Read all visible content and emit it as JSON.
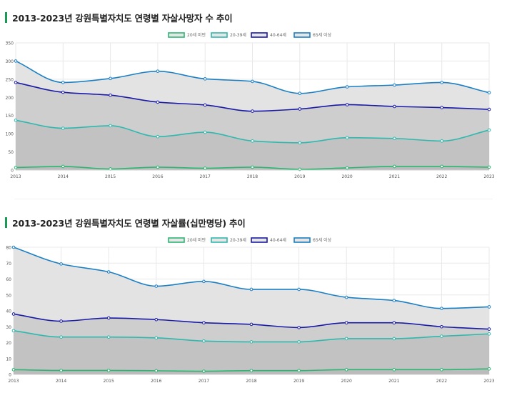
{
  "legend_labels": [
    "20세 미만",
    "20-39세",
    "40-64세",
    "65세 이상"
  ],
  "colors": {
    "under20": "#2bb673",
    "age20_39": "#2fb8ae",
    "age40_64": "#1a1aa6",
    "over65": "#1b7fc4",
    "fill_front": "#b3b3b3",
    "fill_back": "#e3e3e3",
    "grid": "#e8e8e8",
    "title_bar": "#1a9a55"
  },
  "chart_data": [
    {
      "type": "area",
      "title": "2013-2023년 강원특별자치도 연령별 자살사망자 수 추이",
      "xlabel": "",
      "ylabel": "",
      "x": [
        "2013",
        "2014",
        "2015",
        "2016",
        "2017",
        "2018",
        "2019",
        "2020",
        "2021",
        "2022",
        "2023"
      ],
      "ylim": [
        0,
        350
      ],
      "yticks": [
        0,
        50,
        100,
        150,
        200,
        250,
        300,
        350
      ],
      "grid": true,
      "legend_position": "top-center",
      "series": [
        {
          "name": "20세 미만",
          "values": [
            7,
            10,
            3,
            8,
            5,
            8,
            2,
            6,
            10,
            10,
            8
          ]
        },
        {
          "name": "20-39세",
          "values": [
            137,
            115,
            122,
            92,
            104,
            80,
            75,
            89,
            87,
            80,
            110
          ]
        },
        {
          "name": "40-64세",
          "values": [
            241,
            214,
            206,
            187,
            179,
            162,
            168,
            180,
            175,
            172,
            167
          ]
        },
        {
          "name": "65세 이상",
          "values": [
            300,
            241,
            252,
            272,
            251,
            244,
            211,
            229,
            234,
            241,
            213
          ]
        }
      ]
    },
    {
      "type": "area",
      "title": "2013-2023년 강원특별자치도 연령별 자살률(십만명당) 추이",
      "xlabel": "",
      "ylabel": "",
      "x": [
        "2013",
        "2014",
        "2015",
        "2016",
        "2017",
        "2018",
        "2019",
        "2020",
        "2021",
        "2022",
        "2023"
      ],
      "ylim": [
        0,
        80
      ],
      "yticks": [
        0,
        10,
        20,
        30,
        40,
        50,
        60,
        70,
        80
      ],
      "grid": true,
      "legend_position": "top-center",
      "series": [
        {
          "name": "20세 미만",
          "values": [
            3,
            2.5,
            2.5,
            2.3,
            2,
            2.4,
            2.4,
            3,
            3,
            3,
            3.5
          ]
        },
        {
          "name": "20-39세",
          "values": [
            27.5,
            23.5,
            23.5,
            23,
            21,
            20.5,
            20.5,
            22.5,
            22.5,
            24,
            25.5
          ]
        },
        {
          "name": "40-64세",
          "values": [
            38,
            33.5,
            35.5,
            34.5,
            32.5,
            31.5,
            29.5,
            32.5,
            32.5,
            30,
            28.5
          ]
        },
        {
          "name": "65세 이상",
          "values": [
            80,
            69.5,
            64.5,
            55.5,
            58.5,
            53.5,
            53.5,
            48.5,
            46.5,
            41.5,
            42.5
          ]
        }
      ]
    }
  ]
}
